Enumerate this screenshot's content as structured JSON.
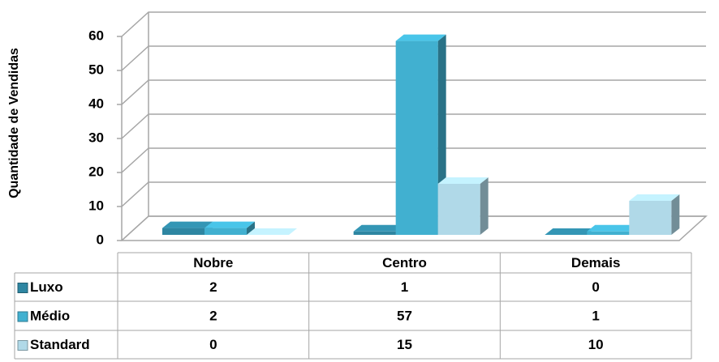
{
  "chart_data": {
    "type": "bar3d",
    "y_axis_label": "Quantidade de Vendidas",
    "categories": [
      "Nobre",
      "Centro",
      "Demais"
    ],
    "series": [
      {
        "name": "Luxo",
        "color": "#2e86a2",
        "values": [
          2,
          1,
          0
        ]
      },
      {
        "name": "Médio",
        "color": "#41b0d0",
        "values": [
          2,
          57,
          1
        ]
      },
      {
        "name": "Standard",
        "color": "#b0d9e8",
        "values": [
          0,
          15,
          10
        ]
      }
    ],
    "ylim": [
      0,
      60
    ],
    "yticks": [
      0,
      10,
      20,
      30,
      40,
      50,
      60
    ],
    "grid": true
  }
}
